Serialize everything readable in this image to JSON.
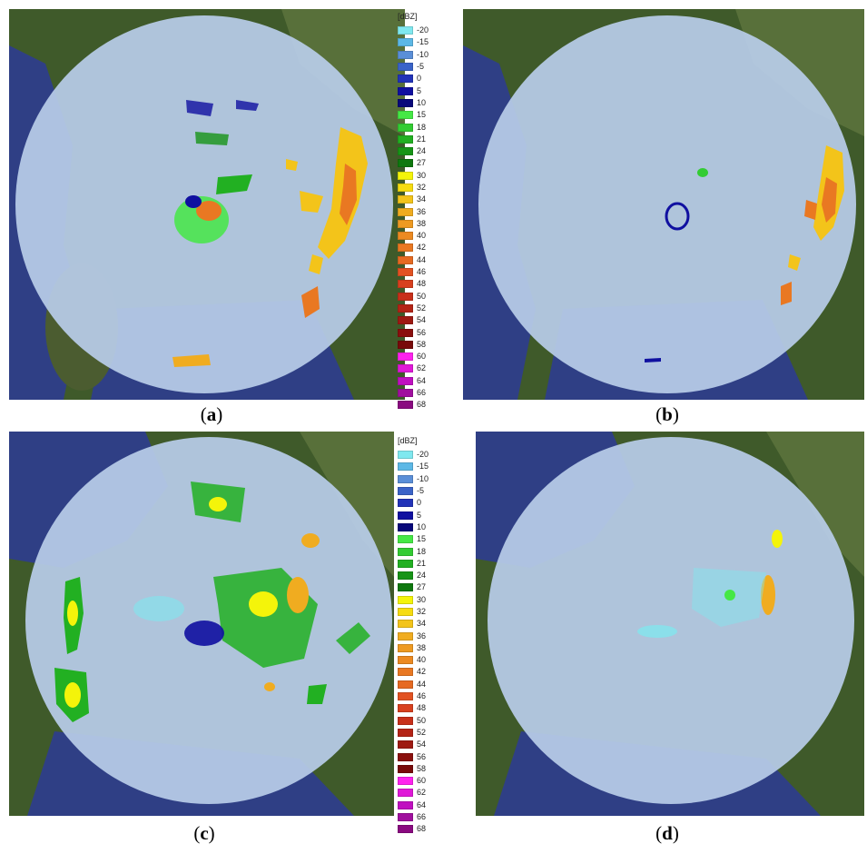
{
  "figure": {
    "panels": [
      {
        "label": "a"
      },
      {
        "label": "b"
      },
      {
        "label": "c"
      },
      {
        "label": "d"
      }
    ],
    "legend": {
      "unit": "[dBZ]",
      "entries": [
        {
          "label": "-20",
          "color": "#7fe8ef"
        },
        {
          "label": "-15",
          "color": "#5cb8e6"
        },
        {
          "label": "-10",
          "color": "#5a8fd8"
        },
        {
          "label": "-5",
          "color": "#3a63c8"
        },
        {
          "label": "0",
          "color": "#2233b8"
        },
        {
          "label": "5",
          "color": "#1010a0"
        },
        {
          "label": "10",
          "color": "#09097a"
        },
        {
          "label": "15",
          "color": "#45e845"
        },
        {
          "label": "18",
          "color": "#33cc33"
        },
        {
          "label": "21",
          "color": "#22b022"
        },
        {
          "label": "24",
          "color": "#179417"
        },
        {
          "label": "27",
          "color": "#0f780f"
        },
        {
          "label": "30",
          "color": "#f4f40a"
        },
        {
          "label": "32",
          "color": "#f6dc10"
        },
        {
          "label": "34",
          "color": "#f3c41a"
        },
        {
          "label": "36",
          "color": "#f0ac20"
        },
        {
          "label": "38",
          "color": "#ee9a22"
        },
        {
          "label": "40",
          "color": "#ec8a22"
        },
        {
          "label": "42",
          "color": "#e97822"
        },
        {
          "label": "44",
          "color": "#e66a22"
        },
        {
          "label": "46",
          "color": "#e25222"
        },
        {
          "label": "48",
          "color": "#d8401e"
        },
        {
          "label": "50",
          "color": "#c8301a"
        },
        {
          "label": "52",
          "color": "#b42416"
        },
        {
          "label": "54",
          "color": "#9e1a12"
        },
        {
          "label": "56",
          "color": "#8a100e"
        },
        {
          "label": "58",
          "color": "#780a0a"
        },
        {
          "label": "60",
          "color": "#ff22ee"
        },
        {
          "label": "62",
          "color": "#e018d8"
        },
        {
          "label": "64",
          "color": "#c010c0"
        },
        {
          "label": "66",
          "color": "#a0109e"
        },
        {
          "label": "68",
          "color": "#8a0a80"
        }
      ]
    }
  }
}
